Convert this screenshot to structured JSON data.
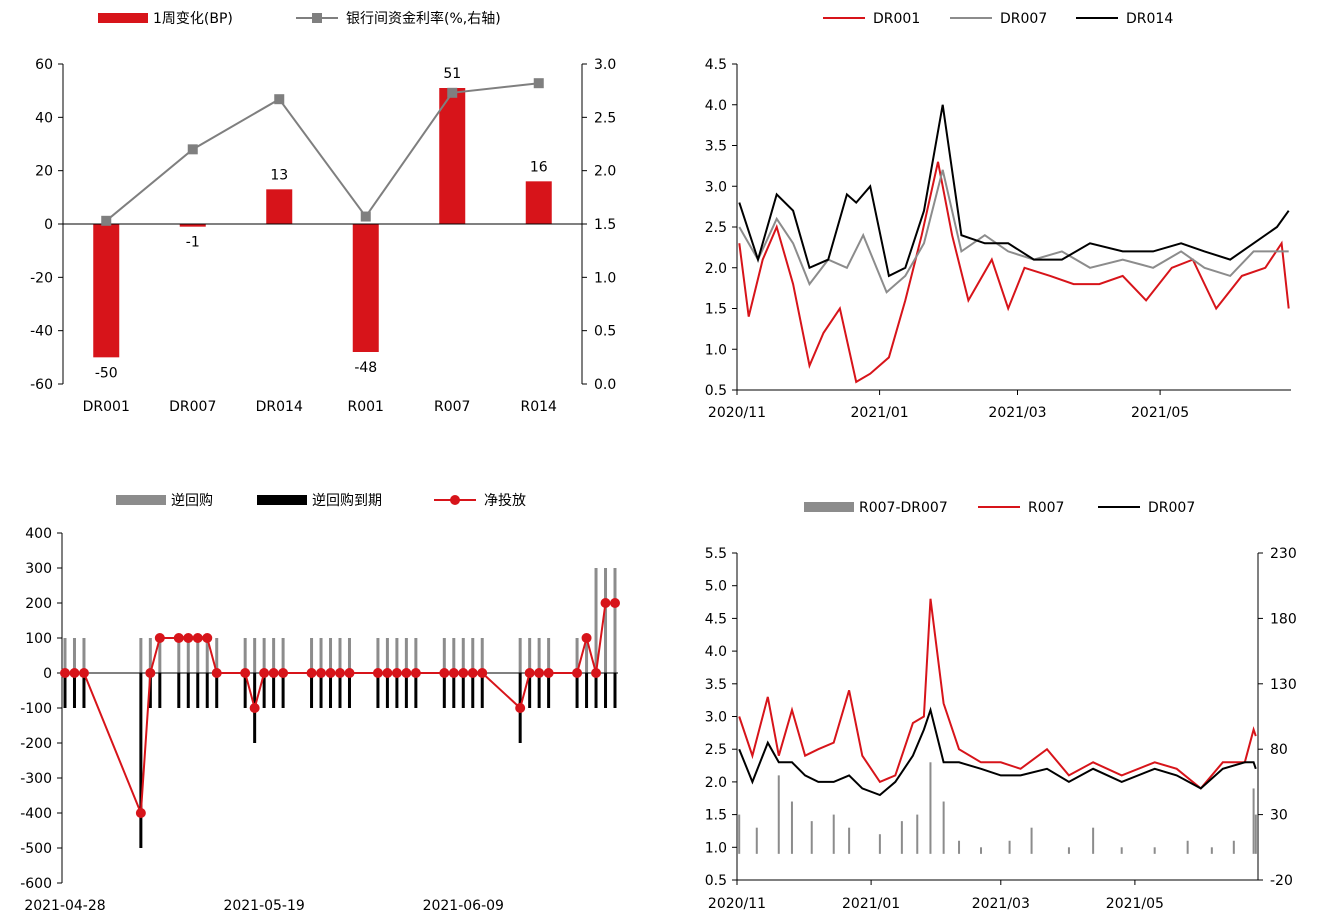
{
  "chart_data": [
    {
      "id": "p1",
      "type": "bar",
      "categories": [
        "DR001",
        "DR007",
        "DR014",
        "R001",
        "R007",
        "R014"
      ],
      "series": [
        {
          "name": "1周变化(BP)",
          "type": "bar",
          "axis": "left",
          "color": "#d7141a",
          "values": [
            -50,
            -1,
            13,
            -48,
            51,
            16
          ],
          "labels": [
            "-50",
            "-1",
            "13",
            "-48",
            "51",
            "16"
          ]
        },
        {
          "name": "银行间资金利率(%,右轴)",
          "type": "line",
          "axis": "right",
          "color": "#7f7f7f",
          "values": [
            1.53,
            2.2,
            2.67,
            1.57,
            2.73,
            2.82
          ]
        }
      ],
      "ylim": [
        -60,
        60
      ],
      "yticks": [
        "60",
        "40",
        "20",
        "0",
        "-20",
        "-40",
        "-60"
      ],
      "y2lim": [
        0,
        3
      ],
      "y2ticks": [
        "3.0",
        "2.5",
        "2.0",
        "1.5",
        "1.0",
        "0.5",
        "0.0"
      ]
    },
    {
      "id": "p2",
      "type": "line",
      "series": [
        {
          "name": "DR001",
          "color": "#d7141a",
          "x": [
            "2020-11-02",
            "2020-11-06",
            "2020-11-12",
            "2020-11-18",
            "2020-11-25",
            "2020-12-02",
            "2020-12-08",
            "2020-12-15",
            "2020-12-22",
            "2020-12-28",
            "2021-01-05",
            "2021-01-12",
            "2021-01-19",
            "2021-01-26",
            "2021-02-01",
            "2021-02-08",
            "2021-02-18",
            "2021-02-25",
            "2021-03-04",
            "2021-03-15",
            "2021-03-25",
            "2021-04-05",
            "2021-04-15",
            "2021-04-25",
            "2021-05-06",
            "2021-05-15",
            "2021-05-25",
            "2021-06-05",
            "2021-06-15",
            "2021-06-22",
            "2021-06-25"
          ],
          "values": [
            2.3,
            1.4,
            2.1,
            2.5,
            1.8,
            0.8,
            1.2,
            1.5,
            0.6,
            0.7,
            0.9,
            1.6,
            2.4,
            3.3,
            2.4,
            1.6,
            2.1,
            1.5,
            2.0,
            1.9,
            1.8,
            1.8,
            1.9,
            1.6,
            2.0,
            2.1,
            1.5,
            1.9,
            2.0,
            2.3,
            1.5
          ]
        },
        {
          "name": "DR007",
          "color": "#8c8c8c",
          "x": [
            "2020-11-02",
            "2020-11-10",
            "2020-11-18",
            "2020-11-25",
            "2020-12-02",
            "2020-12-10",
            "2020-12-18",
            "2020-12-25",
            "2021-01-04",
            "2021-01-12",
            "2021-01-20",
            "2021-01-28",
            "2021-02-05",
            "2021-02-15",
            "2021-02-25",
            "2021-03-08",
            "2021-03-20",
            "2021-04-01",
            "2021-04-15",
            "2021-04-28",
            "2021-05-10",
            "2021-05-20",
            "2021-05-31",
            "2021-06-10",
            "2021-06-20",
            "2021-06-25"
          ],
          "values": [
            2.5,
            2.1,
            2.6,
            2.3,
            1.8,
            2.1,
            2.0,
            2.4,
            1.7,
            1.9,
            2.3,
            3.2,
            2.2,
            2.4,
            2.2,
            2.1,
            2.2,
            2.0,
            2.1,
            2.0,
            2.2,
            2.0,
            1.9,
            2.2,
            2.2,
            2.2
          ]
        },
        {
          "name": "DR014",
          "color": "#000000",
          "x": [
            "2020-11-02",
            "2020-11-10",
            "2020-11-18",
            "2020-11-25",
            "2020-12-02",
            "2020-12-10",
            "2020-12-18",
            "2020-12-22",
            "2020-12-28",
            "2021-01-05",
            "2021-01-12",
            "2021-01-20",
            "2021-01-28",
            "2021-02-05",
            "2021-02-15",
            "2021-02-25",
            "2021-03-08",
            "2021-03-20",
            "2021-04-01",
            "2021-04-15",
            "2021-04-28",
            "2021-05-10",
            "2021-05-20",
            "2021-05-31",
            "2021-06-10",
            "2021-06-20",
            "2021-06-25"
          ],
          "values": [
            2.8,
            2.1,
            2.9,
            2.7,
            2.0,
            2.1,
            2.9,
            2.8,
            3.0,
            1.9,
            2.0,
            2.7,
            4.0,
            2.4,
            2.3,
            2.3,
            2.1,
            2.1,
            2.3,
            2.2,
            2.2,
            2.3,
            2.2,
            2.1,
            2.3,
            2.5,
            2.7
          ]
        }
      ],
      "xticks": [
        "2020/11",
        "2021/01",
        "2021/03",
        "2021/05"
      ],
      "xtick_dates": [
        "2020-11-01",
        "2021-01-01",
        "2021-03-01",
        "2021-05-01"
      ],
      "xlim": [
        "2020-11-01",
        "2021-06-26"
      ],
      "ylim": [
        0.5,
        4.5
      ],
      "yticks": [
        "4.5",
        "4.0",
        "3.5",
        "3.0",
        "2.5",
        "2.0",
        "1.5",
        "1.0",
        "0.5"
      ]
    },
    {
      "id": "p3",
      "type": "bar",
      "dates": [
        "2021-04-28",
        "2021-04-29",
        "2021-04-30",
        "2021-05-06",
        "2021-05-07",
        "2021-05-08",
        "2021-05-10",
        "2021-05-11",
        "2021-05-12",
        "2021-05-13",
        "2021-05-14",
        "2021-05-17",
        "2021-05-18",
        "2021-05-19",
        "2021-05-20",
        "2021-05-21",
        "2021-05-24",
        "2021-05-25",
        "2021-05-26",
        "2021-05-27",
        "2021-05-28",
        "2021-05-31",
        "2021-06-01",
        "2021-06-02",
        "2021-06-03",
        "2021-06-04",
        "2021-06-07",
        "2021-06-08",
        "2021-06-09",
        "2021-06-10",
        "2021-06-11",
        "2021-06-15",
        "2021-06-16",
        "2021-06-17",
        "2021-06-18",
        "2021-06-21",
        "2021-06-22",
        "2021-06-23",
        "2021-06-24",
        "2021-06-25"
      ],
      "series": [
        {
          "name": "逆回购",
          "type": "bar",
          "color": "#8c8c8c",
          "values": [
            100,
            100,
            100,
            100,
            100,
            100,
            100,
            100,
            100,
            100,
            100,
            100,
            100,
            100,
            100,
            100,
            100,
            100,
            100,
            100,
            100,
            100,
            100,
            100,
            100,
            100,
            100,
            100,
            100,
            100,
            100,
            100,
            100,
            100,
            100,
            100,
            100,
            300,
            300,
            300
          ]
        },
        {
          "name": "逆回购到期",
          "type": "bar",
          "color": "#000000",
          "values": [
            -100,
            -100,
            -100,
            -500,
            -100,
            -100,
            -100,
            -100,
            -100,
            -100,
            -100,
            -100,
            -200,
            -100,
            -100,
            -100,
            -100,
            -100,
            -100,
            -100,
            -100,
            -100,
            -100,
            -100,
            -100,
            -100,
            -100,
            -100,
            -100,
            -100,
            -100,
            -200,
            -100,
            -100,
            -100,
            -100,
            -100,
            -100,
            -100,
            -100
          ]
        },
        {
          "name": "净投放",
          "type": "line",
          "color": "#d7141a",
          "values": [
            0,
            0,
            0,
            -400,
            0,
            100,
            100,
            100,
            100,
            100,
            0,
            0,
            -100,
            0,
            0,
            0,
            0,
            0,
            0,
            0,
            0,
            0,
            0,
            0,
            0,
            0,
            0,
            0,
            0,
            0,
            0,
            -100,
            0,
            0,
            0,
            0,
            100,
            0,
            200,
            200
          ]
        }
      ],
      "xticks": [
        "2021-04-28",
        "2021-05-19",
        "2021-06-09"
      ],
      "ylim": [
        -600,
        400
      ],
      "yticks": [
        "400",
        "300",
        "200",
        "100",
        "0",
        "-100",
        "-200",
        "-300",
        "-400",
        "-500",
        "-600"
      ]
    },
    {
      "id": "p4",
      "type": "line",
      "series": [
        {
          "name": "R007-DR007",
          "type": "bar",
          "axis": "right",
          "color": "#8c8c8c",
          "x": [
            "2020-11-02",
            "2020-11-10",
            "2020-11-20",
            "2020-11-26",
            "2020-12-05",
            "2020-12-15",
            "2020-12-22",
            "2021-01-05",
            "2021-01-15",
            "2021-01-22",
            "2021-01-28",
            "2021-02-03",
            "2021-02-10",
            "2021-02-20",
            "2021-03-05",
            "2021-03-15",
            "2021-04-01",
            "2021-04-12",
            "2021-04-25",
            "2021-05-10",
            "2021-05-25",
            "2021-06-05",
            "2021-06-15",
            "2021-06-24",
            "2021-06-25"
          ],
          "values": [
            30,
            20,
            60,
            40,
            25,
            30,
            20,
            15,
            25,
            30,
            70,
            40,
            10,
            5,
            10,
            20,
            5,
            20,
            5,
            5,
            10,
            5,
            10,
            50,
            30
          ]
        },
        {
          "name": "R007",
          "axis": "left",
          "color": "#d7141a",
          "x": [
            "2020-11-02",
            "2020-11-08",
            "2020-11-15",
            "2020-11-20",
            "2020-11-26",
            "2020-12-02",
            "2020-12-08",
            "2020-12-15",
            "2020-12-22",
            "2020-12-28",
            "2021-01-05",
            "2021-01-12",
            "2021-01-20",
            "2021-01-25",
            "2021-01-28",
            "2021-02-03",
            "2021-02-10",
            "2021-02-20",
            "2021-03-01",
            "2021-03-10",
            "2021-03-22",
            "2021-04-01",
            "2021-04-12",
            "2021-04-25",
            "2021-05-10",
            "2021-05-20",
            "2021-05-31",
            "2021-06-10",
            "2021-06-20",
            "2021-06-24",
            "2021-06-25"
          ],
          "values": [
            3.0,
            2.4,
            3.3,
            2.4,
            3.1,
            2.4,
            2.5,
            2.6,
            3.4,
            2.4,
            2.0,
            2.1,
            2.9,
            3.0,
            4.8,
            3.2,
            2.5,
            2.3,
            2.3,
            2.2,
            2.5,
            2.1,
            2.3,
            2.1,
            2.3,
            2.2,
            1.9,
            2.3,
            2.3,
            2.8,
            2.7
          ]
        },
        {
          "name": "DR007",
          "axis": "left",
          "color": "#000000",
          "x": [
            "2020-11-02",
            "2020-11-08",
            "2020-11-15",
            "2020-11-20",
            "2020-11-26",
            "2020-12-02",
            "2020-12-08",
            "2020-12-15",
            "2020-12-22",
            "2020-12-28",
            "2021-01-05",
            "2021-01-12",
            "2021-01-20",
            "2021-01-25",
            "2021-01-28",
            "2021-02-03",
            "2021-02-10",
            "2021-02-20",
            "2021-03-01",
            "2021-03-10",
            "2021-03-22",
            "2021-04-01",
            "2021-04-12",
            "2021-04-25",
            "2021-05-10",
            "2021-05-20",
            "2021-05-31",
            "2021-06-10",
            "2021-06-20",
            "2021-06-24",
            "2021-06-25"
          ],
          "values": [
            2.5,
            2.0,
            2.6,
            2.3,
            2.3,
            2.1,
            2.0,
            2.0,
            2.1,
            1.9,
            1.8,
            2.0,
            2.4,
            2.8,
            3.1,
            2.3,
            2.3,
            2.2,
            2.1,
            2.1,
            2.2,
            2.0,
            2.2,
            2.0,
            2.2,
            2.1,
            1.9,
            2.2,
            2.3,
            2.3,
            2.2
          ]
        }
      ],
      "xticks": [
        "2020/11",
        "2021/01",
        "2021/03",
        "2021/05"
      ],
      "xtick_dates": [
        "2020-11-01",
        "2021-01-01",
        "2021-03-01",
        "2021-05-01"
      ],
      "xlim": [
        "2020-11-01",
        "2021-06-26"
      ],
      "ylim": [
        0.5,
        5.5
      ],
      "yticks": [
        "5.5",
        "5.0",
        "4.5",
        "4.0",
        "3.5",
        "3.0",
        "2.5",
        "2.0",
        "1.5",
        "1.0",
        "0.5"
      ],
      "y2lim": [
        -20,
        230
      ],
      "y2ticks": [
        "230",
        "180",
        "130",
        "80",
        "30",
        "-20"
      ]
    }
  ]
}
